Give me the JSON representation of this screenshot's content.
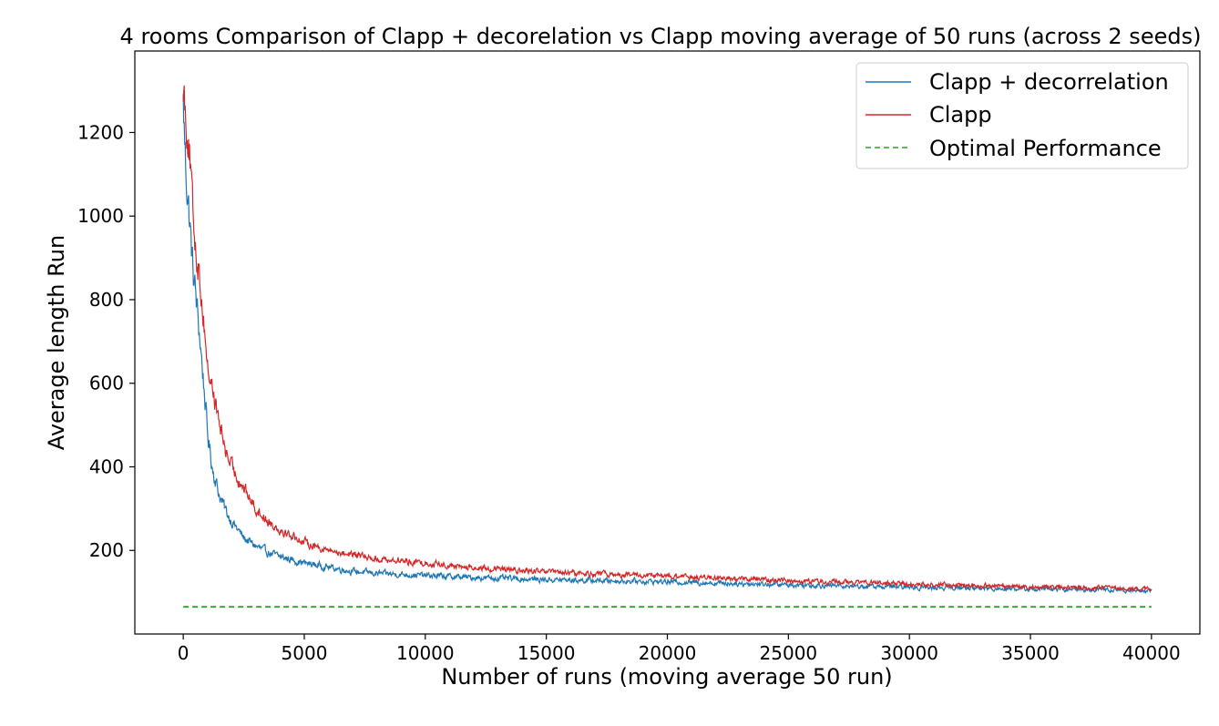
{
  "chart_data": {
    "type": "line",
    "title": "4 rooms Comparison of Clapp + decorelation vs Clapp moving average of 50 runs (across 2 seeds)",
    "xlabel": "Number of runs (moving average 50 run)",
    "ylabel": "Average length Run",
    "xlim": [
      -2000,
      42000
    ],
    "ylim": [
      0,
      1395
    ],
    "xticks": [
      0,
      5000,
      10000,
      15000,
      20000,
      25000,
      30000,
      35000,
      40000
    ],
    "yticks": [
      200,
      400,
      600,
      800,
      1000,
      1200
    ],
    "grid": false,
    "legend_position": "top-right",
    "series": [
      {
        "name": "Clapp + decorrelation",
        "color": "#1f77b4",
        "style": "solid",
        "noise": 0.09,
        "x": [
          0,
          100,
          250,
          400,
          500,
          700,
          900,
          1000,
          1200,
          1500,
          1800,
          2000,
          2500,
          3000,
          3500,
          4000,
          5000,
          6000,
          7000,
          8000,
          10000,
          12000,
          15000,
          20000,
          25000,
          30000,
          35000,
          40000
        ],
        "y": [
          1270,
          1120,
          1000,
          870,
          820,
          700,
          560,
          480,
          400,
          330,
          290,
          270,
          230,
          210,
          195,
          185,
          170,
          160,
          150,
          145,
          140,
          135,
          130,
          125,
          118,
          112,
          108,
          104
        ]
      },
      {
        "name": "Clapp",
        "color": "#d62728",
        "style": "solid",
        "noise": 0.08,
        "x": [
          0,
          100,
          250,
          400,
          500,
          700,
          900,
          1000,
          1200,
          1500,
          1800,
          2000,
          2500,
          3000,
          3500,
          4000,
          5000,
          6000,
          7000,
          8000,
          10000,
          12000,
          15000,
          20000,
          25000,
          30000,
          35000,
          40000
        ],
        "y": [
          1320,
          1250,
          1160,
          1000,
          940,
          840,
          720,
          640,
          590,
          500,
          430,
          400,
          350,
          300,
          270,
          250,
          220,
          200,
          190,
          180,
          170,
          158,
          148,
          138,
          128,
          120,
          113,
          108
        ]
      },
      {
        "name": "Optimal Performance",
        "color": "#2ca02c",
        "style": "dashed",
        "noise": 0,
        "x": [
          0,
          40000
        ],
        "y": [
          65,
          65
        ]
      }
    ]
  }
}
